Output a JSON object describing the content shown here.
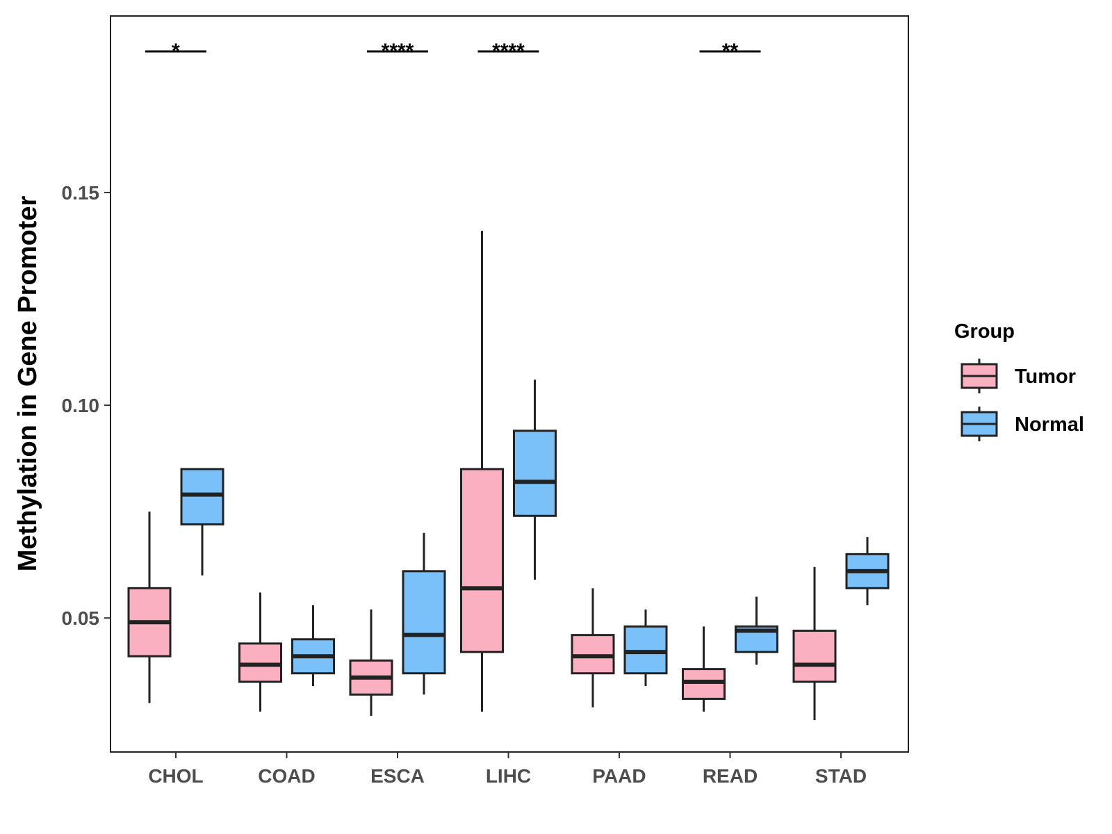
{
  "chart_data": {
    "type": "boxplot",
    "ylabel": "Methylation in Gene Promoter",
    "xlabel": "",
    "ylim": [
      0.0185,
      0.1915
    ],
    "y_ticks": [
      0.05,
      0.1,
      0.15
    ],
    "y_tick_labels": [
      "0.05",
      "0.10",
      "0.15"
    ],
    "categories": [
      "CHOL",
      "COAD",
      "ESCA",
      "LIHC",
      "PAAD",
      "READ",
      "STAD"
    ],
    "legend": {
      "title": "Group",
      "position": "right",
      "entries": [
        {
          "name": "Tumor",
          "color": "#fbb0c2"
        },
        {
          "name": "Normal",
          "color": "#79c1f8"
        }
      ]
    },
    "colors": {
      "stroke": "#222222",
      "tumor": "#fbb0c2",
      "normal": "#79c1f8"
    },
    "series": [
      {
        "name": "Tumor",
        "boxes": [
          {
            "category": "CHOL",
            "min": 0.03,
            "q1": 0.041,
            "median": 0.049,
            "q3": 0.057,
            "max": 0.075
          },
          {
            "category": "COAD",
            "min": 0.028,
            "q1": 0.035,
            "median": 0.039,
            "q3": 0.044,
            "max": 0.056
          },
          {
            "category": "ESCA",
            "min": 0.027,
            "q1": 0.032,
            "median": 0.036,
            "q3": 0.04,
            "max": 0.052
          },
          {
            "category": "LIHC",
            "min": 0.028,
            "q1": 0.042,
            "median": 0.057,
            "q3": 0.085,
            "max": 0.141
          },
          {
            "category": "PAAD",
            "min": 0.029,
            "q1": 0.037,
            "median": 0.041,
            "q3": 0.046,
            "max": 0.057
          },
          {
            "category": "READ",
            "min": 0.028,
            "q1": 0.031,
            "median": 0.035,
            "q3": 0.038,
            "max": 0.048
          },
          {
            "category": "STAD",
            "min": 0.026,
            "q1": 0.035,
            "median": 0.039,
            "q3": 0.047,
            "max": 0.062
          }
        ]
      },
      {
        "name": "Normal",
        "boxes": [
          {
            "category": "CHOL",
            "min": 0.06,
            "q1": 0.072,
            "median": 0.079,
            "q3": 0.085,
            "max": 0.085
          },
          {
            "category": "COAD",
            "min": 0.034,
            "q1": 0.037,
            "median": 0.041,
            "q3": 0.045,
            "max": 0.053
          },
          {
            "category": "ESCA",
            "min": 0.032,
            "q1": 0.037,
            "median": 0.046,
            "q3": 0.061,
            "max": 0.07
          },
          {
            "category": "LIHC",
            "min": 0.059,
            "q1": 0.074,
            "median": 0.082,
            "q3": 0.094,
            "max": 0.106
          },
          {
            "category": "PAAD",
            "min": 0.034,
            "q1": 0.037,
            "median": 0.042,
            "q3": 0.048,
            "max": 0.052
          },
          {
            "category": "READ",
            "min": 0.039,
            "q1": 0.042,
            "median": 0.047,
            "q3": 0.048,
            "max": 0.055
          },
          {
            "category": "STAD",
            "min": 0.053,
            "q1": 0.057,
            "median": 0.061,
            "q3": 0.065,
            "max": 0.069
          }
        ]
      }
    ],
    "significance": [
      {
        "category": "CHOL",
        "label": "*"
      },
      {
        "category": "ESCA",
        "label": "****"
      },
      {
        "category": "LIHC",
        "label": "****"
      },
      {
        "category": "READ",
        "label": "**"
      }
    ]
  }
}
